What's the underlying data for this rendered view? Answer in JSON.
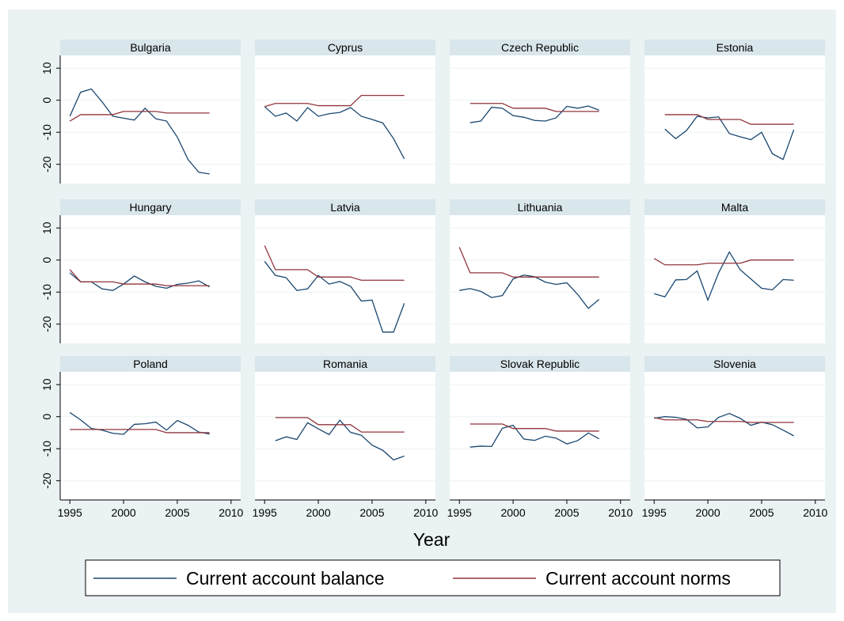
{
  "chart_data": {
    "type": "line",
    "xlabel": "Year",
    "panels": [
      "Bulgaria",
      "Cyprus",
      "Czech Republic",
      "Estonia",
      "Hungary",
      "Latvia",
      "Lithuania",
      "Malta",
      "Poland",
      "Romania",
      "Slovak Republic",
      "Slovenia"
    ],
    "x": [
      1995,
      1996,
      1997,
      1998,
      1999,
      2000,
      2001,
      2002,
      2003,
      2004,
      2005,
      2006,
      2007,
      2008
    ],
    "xlim": [
      1994.1,
      2010.9
    ],
    "xticks": [
      1995,
      2000,
      2005,
      2010
    ],
    "ylim": [
      -26,
      14
    ],
    "yticks": [
      10,
      0,
      -10,
      -20
    ],
    "grid": true,
    "series": [
      {
        "name": "Current account balance",
        "color": "#1a476f",
        "values": [
          [
            -5,
            2.5,
            3.5,
            -0.5,
            -5,
            -5.6,
            -6.2,
            -2.5,
            -5.8,
            -6.5,
            -11.5,
            -18.5,
            -22.5,
            -23
          ],
          [
            -2,
            -5,
            -4,
            -6.5,
            -2.3,
            -5,
            -4.2,
            -3.8,
            -2.3,
            -5,
            -6,
            -7.1,
            -12,
            -18.3
          ],
          [
            null,
            -7,
            -6.5,
            -2.2,
            -2.5,
            -4.8,
            -5.3,
            -6.3,
            -6.5,
            -5.5,
            -1.9,
            -2.5,
            -1.8,
            -3.1
          ],
          [
            null,
            -9,
            -12,
            -9.5,
            -5,
            -5.5,
            -5.2,
            -10.4,
            -11.4,
            -12.3,
            -10,
            -16.7,
            -18.5,
            -9.2
          ],
          [
            -4,
            -6.8,
            -6.8,
            -9,
            -9.5,
            -7.5,
            -5,
            -6.8,
            -8.2,
            -8.8,
            -7.6,
            -7.2,
            -6.5,
            -8.4
          ],
          [
            -0.4,
            -4.8,
            -5.5,
            -9.5,
            -9,
            -4.8,
            -7.5,
            -6.7,
            -8.2,
            -12.8,
            -12.5,
            -22.5,
            -22.5,
            -13.5
          ],
          [
            -9.5,
            -8.9,
            -9.8,
            -11.7,
            -11.1,
            -5.9,
            -4.7,
            -5.2,
            -6.9,
            -7.6,
            -7.1,
            -10.7,
            -15.1,
            -12.3
          ],
          [
            -10.5,
            -11.5,
            -6.2,
            -6.1,
            -3.4,
            -12.5,
            -4,
            2.5,
            -3,
            -5.9,
            -8.8,
            -9.3,
            -6.1,
            -6.3
          ],
          [
            1.3,
            -1,
            -3.7,
            -4.2,
            -5.2,
            -5.5,
            -2.4,
            -2.2,
            -1.7,
            -4.2,
            -1.2,
            -2.7,
            -4.8,
            -5.4
          ],
          [
            null,
            -7.5,
            -6.3,
            -7.1,
            -1.9,
            -3.8,
            -5.6,
            -1.1,
            -4.9,
            -5.8,
            -8.9,
            -10.5,
            -13.5,
            -12.3
          ],
          [
            null,
            -9.5,
            -9.2,
            -9.3,
            -3.6,
            -2.7,
            -7,
            -7.4,
            -6.1,
            -6.7,
            -8.5,
            -7.5,
            -5.1,
            -6.9
          ],
          [
            -0.5,
            0,
            -0.2,
            -0.8,
            -3.5,
            -3.2,
            -0.2,
            1,
            -0.5,
            -2.7,
            -1.7,
            -2.5,
            -4.2,
            -6
          ]
        ]
      },
      {
        "name": "Current account norms",
        "color": "#90353b",
        "values": [
          [
            -6.5,
            -4.5,
            -4.5,
            -4.5,
            -4.5,
            -3.5,
            -3.5,
            -3.5,
            -3.5,
            -4,
            -4,
            -4,
            -4,
            -4
          ],
          [
            -2,
            -1,
            -1,
            -1,
            -1,
            -1.7,
            -1.7,
            -1.7,
            -1.7,
            1.5,
            1.5,
            1.5,
            1.5,
            1.5
          ],
          [
            null,
            -1,
            -1,
            -1,
            -1,
            -2.5,
            -2.5,
            -2.5,
            -2.5,
            -3.5,
            -3.5,
            -3.5,
            -3.5,
            -3.5
          ],
          [
            null,
            -4.5,
            -4.5,
            -4.5,
            -4.5,
            -6,
            -6,
            -6,
            -6,
            -7.5,
            -7.5,
            -7.5,
            -7.5,
            -7.5
          ],
          [
            -3,
            -6.8,
            -6.8,
            -6.8,
            -6.8,
            -7.5,
            -7.5,
            -7.5,
            -7.5,
            -8,
            -8,
            -8,
            -8,
            -8
          ],
          [
            4.5,
            -3,
            -3,
            -3,
            -3,
            -5.3,
            -5.3,
            -5.3,
            -5.3,
            -6.3,
            -6.3,
            -6.3,
            -6.3,
            -6.3
          ],
          [
            4,
            -4,
            -4,
            -4,
            -4,
            -5.3,
            -5.3,
            -5.3,
            -5.3,
            -5.3,
            -5.3,
            -5.3,
            -5.3,
            -5.3
          ],
          [
            0.5,
            -1.5,
            -1.5,
            -1.5,
            -1.5,
            -1,
            -1,
            -1,
            -1,
            0,
            0,
            0,
            0,
            0
          ],
          [
            -4,
            -4,
            -4,
            -4,
            -4,
            -4,
            -4,
            -4,
            -4,
            -5,
            -5,
            -5,
            -5,
            -5
          ],
          [
            null,
            -0.3,
            -0.3,
            -0.3,
            -0.3,
            -2.5,
            -2.5,
            -2.5,
            -2.5,
            -4.8,
            -4.8,
            -4.8,
            -4.8,
            -4.8
          ],
          [
            null,
            -2.3,
            -2.3,
            -2.3,
            -2.3,
            -3.7,
            -3.7,
            -3.7,
            -3.7,
            -4.5,
            -4.5,
            -4.5,
            -4.5,
            -4.5
          ],
          [
            -0.3,
            -1,
            -1,
            -1,
            -1,
            -1.5,
            -1.5,
            -1.5,
            -1.5,
            -1.8,
            -1.8,
            -1.8,
            -1.8,
            -1.8
          ]
        ]
      }
    ]
  }
}
